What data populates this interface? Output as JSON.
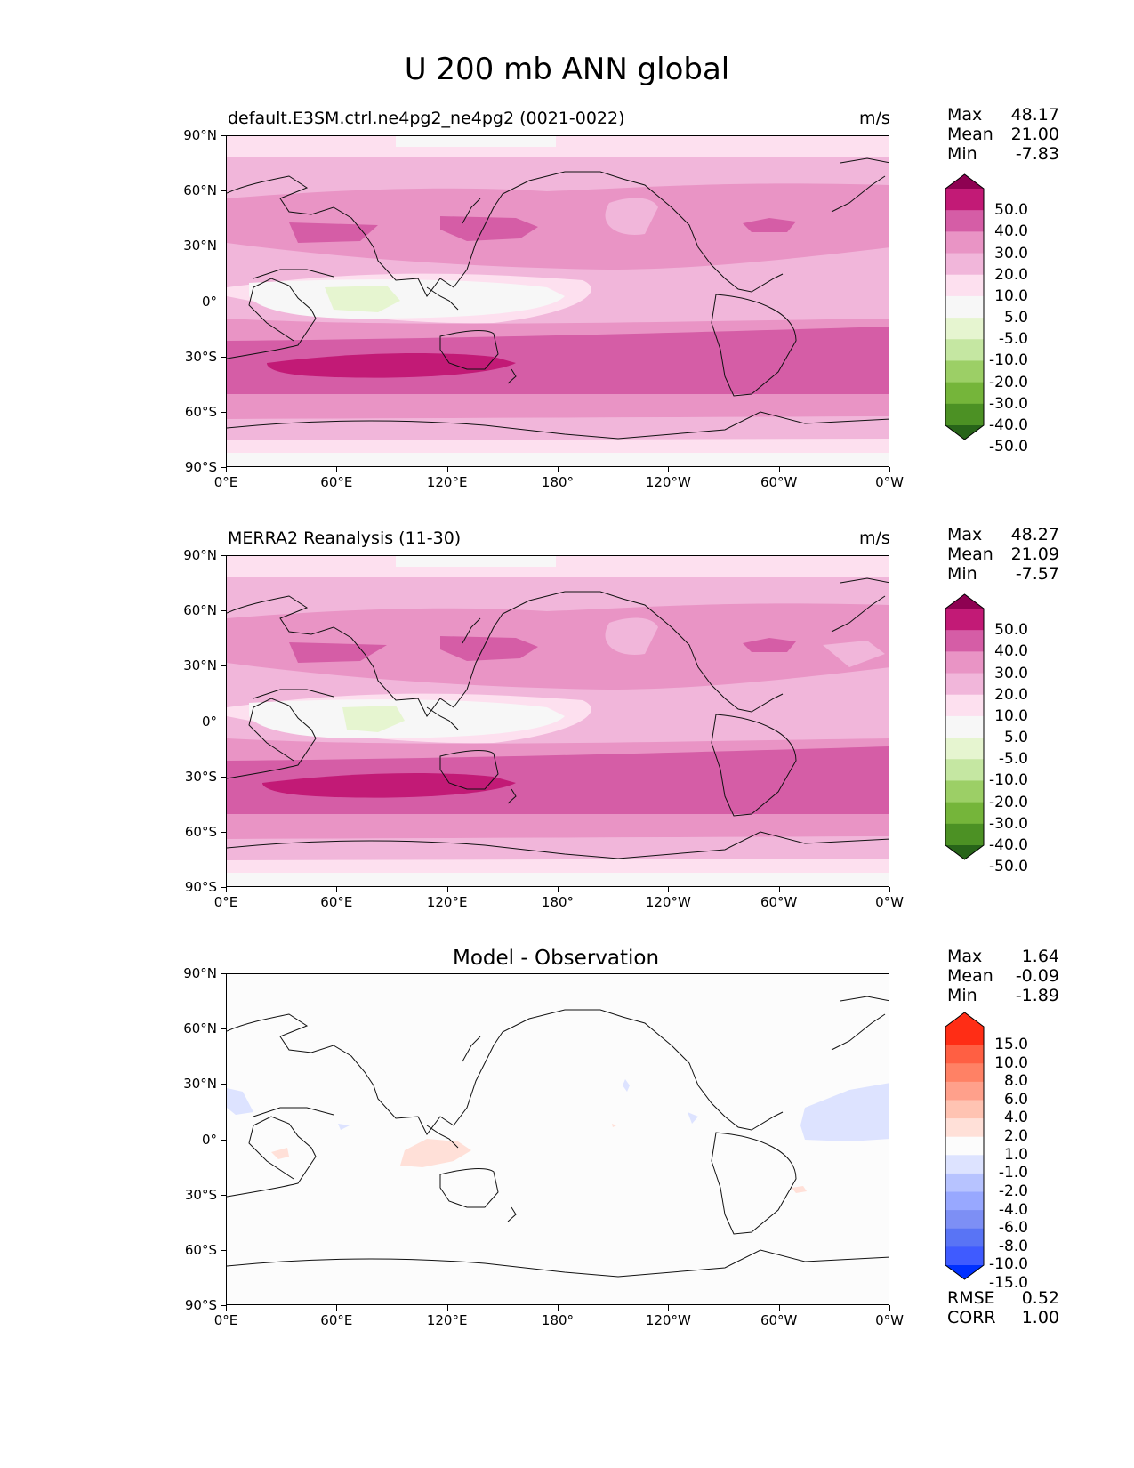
{
  "title": "U 200 mb ANN global",
  "colors": {
    "pink": [
      "#f7f7f7",
      "#fde0ef",
      "#f1b6da",
      "#e994c5",
      "#d55da6",
      "#c21a76",
      "#8e0152"
    ],
    "green": [
      "#e6f5d0",
      "#c5e7a2",
      "#9ccf66",
      "#75b53a",
      "#4c9124",
      "#276419"
    ],
    "red": [
      "#ffe0d8",
      "#ffc3b2",
      "#ffa08b",
      "#ff8165",
      "#ff5f43",
      "#ff2d15"
    ],
    "blue": [
      "#dde3ff",
      "#b7c3ff",
      "#98a8ff",
      "#7d8ff5",
      "#5974f5",
      "#3f5bff",
      "#0030ff"
    ],
    "white": "#fcfcfc",
    "land_outline": "#111111"
  },
  "panels": [
    {
      "title": "default.E3SM.ctrl.ne4pg2_ne4pg2 (0021-0022)",
      "units": "m/s",
      "stats": [
        {
          "label": "Max",
          "value": "48.17"
        },
        {
          "label": "Mean",
          "value": "21.00"
        },
        {
          "label": "Min",
          "value": "-7.83"
        }
      ],
      "colorbar_labels": [
        "50.0",
        "40.0",
        "30.0",
        "20.0",
        "10.0",
        "5.0",
        "-5.0",
        "-10.0",
        "-20.0",
        "-30.0",
        "-40.0",
        "-50.0"
      ]
    },
    {
      "title": "MERRA2 Reanalysis (11-30)",
      "units": "m/s",
      "stats": [
        {
          "label": "Max",
          "value": "48.27"
        },
        {
          "label": "Mean",
          "value": "21.09"
        },
        {
          "label": "Min",
          "value": "-7.57"
        }
      ],
      "colorbar_labels": [
        "50.0",
        "40.0",
        "30.0",
        "20.0",
        "10.0",
        "5.0",
        "-5.0",
        "-10.0",
        "-20.0",
        "-30.0",
        "-40.0",
        "-50.0"
      ]
    },
    {
      "title": "Model - Observation",
      "units": "",
      "stats": [
        {
          "label": "Max",
          "value": "1.64"
        },
        {
          "label": "Mean",
          "value": "-0.09"
        },
        {
          "label": "Min",
          "value": "-1.89"
        }
      ],
      "colorbar_labels": [
        "15.0",
        "10.0",
        "8.0",
        "6.0",
        "4.0",
        "2.0",
        "1.0",
        "-1.0",
        "-2.0",
        "-4.0",
        "-6.0",
        "-8.0",
        "-10.0",
        "-15.0"
      ],
      "extra_stats": [
        {
          "label": "RMSE",
          "value": "0.52"
        },
        {
          "label": "CORR",
          "value": "1.00"
        }
      ]
    }
  ],
  "axes": {
    "y_ticks": [
      "90°N",
      "60°N",
      "30°N",
      "0°",
      "30°S",
      "60°S",
      "90°S"
    ],
    "x_ticks": [
      "0°E",
      "60°E",
      "120°E",
      "180°",
      "120°W",
      "60°W",
      "0°W"
    ]
  }
}
